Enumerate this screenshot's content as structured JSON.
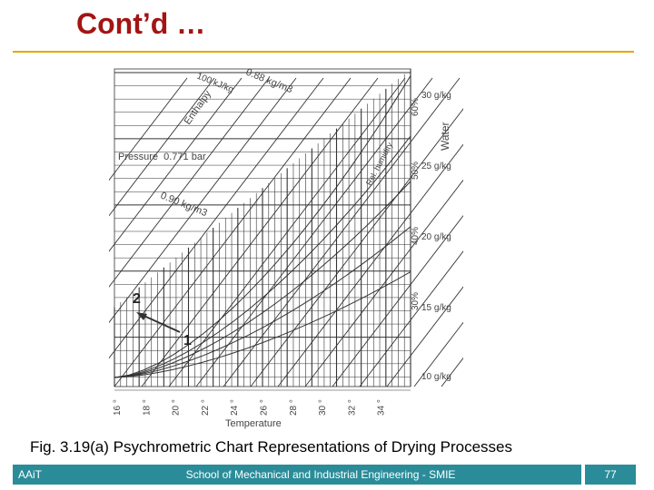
{
  "slide": {
    "title": "Cont’d …",
    "caption": "Fig. 3.19(a) Psychrometric Chart Representations of Drying Processes",
    "footer": {
      "left": "AAiT",
      "center": "School of Mechanical and Industrial Engineering - SMIE",
      "page": "77"
    }
  },
  "diagram": {
    "labels": {
      "enthalpy": "Enthalpy",
      "enthalpy_value": "100 kJ/kg",
      "volume_top": "0.88 kg/m3",
      "pressure": "Pressure  0.771 bar",
      "volume_mid": "0.90 kg/m3",
      "rel_humidity": "Rel. humidity",
      "water": "Water",
      "xlabel": "Temperature",
      "point1": "1",
      "point2": "2"
    },
    "humidity_labels": [
      "60%",
      "50%",
      "40%",
      "30%"
    ],
    "moisture_labels": [
      "30 g/kg",
      "25 g/kg",
      "20 g/kg",
      "15 g/kg",
      "10 g/kg"
    ],
    "temperature_ticks": [
      "16 °",
      "18 °",
      "20 °",
      "22 °",
      "24 °",
      "26 °",
      "28 °",
      "30 °",
      "32 °",
      "34 °"
    ],
    "line_color": "#333333"
  }
}
